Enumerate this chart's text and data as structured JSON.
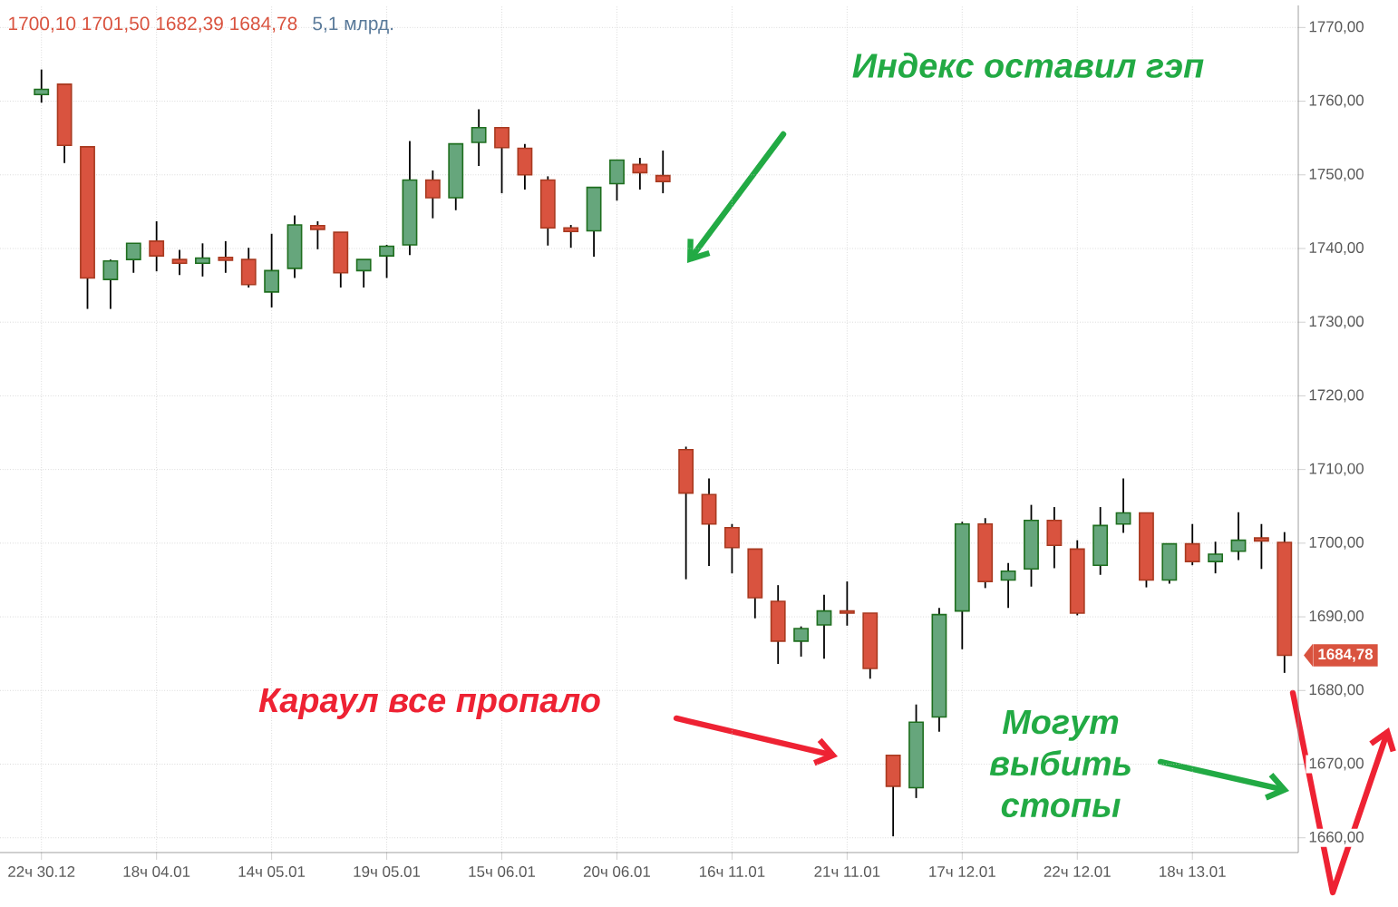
{
  "chart_data": {
    "type": "candlestick",
    "title": "1700,10  1701,50  1682,39  1684,78",
    "subtitle": "5,1 млрд.",
    "categories": [
      "22ч 30.12",
      null,
      null,
      null,
      null,
      "18ч 04.01",
      null,
      null,
      null,
      null,
      "14ч 05.01",
      null,
      null,
      null,
      null,
      "19ч 05.01",
      null,
      null,
      null,
      null,
      "15ч 06.01",
      null,
      null,
      null,
      null,
      "20ч 06.01",
      null,
      null,
      null,
      null,
      "16ч 11.01",
      null,
      null,
      null,
      null,
      "21ч 11.01",
      null,
      null,
      null,
      null,
      "17ч 12.01",
      null,
      null,
      null,
      null,
      "22ч 12.01",
      null,
      null,
      null,
      null,
      "18ч 13.01",
      null,
      null,
      null,
      null
    ],
    "ohlc": [
      [
        1760.9,
        1764.3,
        1759.8,
        1761.6
      ],
      [
        1762.3,
        1762.3,
        1751.6,
        1754.0
      ],
      [
        1753.8,
        1753.8,
        1731.8,
        1736.0
      ],
      [
        1735.8,
        1738.5,
        1731.8,
        1738.3
      ],
      [
        1738.5,
        1740.7,
        1736.7,
        1740.7
      ],
      [
        1741.0,
        1743.7,
        1736.9,
        1739.0
      ],
      [
        1738.5,
        1739.8,
        1736.4,
        1738.0
      ],
      [
        1738.0,
        1740.7,
        1736.2,
        1738.7
      ],
      [
        1738.8,
        1741.0,
        1736.7,
        1738.4
      ],
      [
        1738.5,
        1740.1,
        1734.7,
        1735.1
      ],
      [
        1734.1,
        1742.0,
        1732.0,
        1737.0
      ],
      [
        1737.3,
        1744.5,
        1736.0,
        1743.2
      ],
      [
        1743.1,
        1743.7,
        1739.9,
        1742.6
      ],
      [
        1742.2,
        1742.2,
        1734.7,
        1736.7
      ],
      [
        1737.0,
        1738.5,
        1734.7,
        1738.5
      ],
      [
        1739.0,
        1740.5,
        1736.0,
        1740.3
      ],
      [
        1740.5,
        1754.6,
        1739.1,
        1749.3
      ],
      [
        1749.3,
        1750.6,
        1744.1,
        1746.9
      ],
      [
        1746.9,
        1754.2,
        1745.2,
        1754.2
      ],
      [
        1754.4,
        1758.9,
        1751.2,
        1756.4
      ],
      [
        1756.4,
        1756.4,
        1747.5,
        1753.7
      ],
      [
        1753.6,
        1754.2,
        1748.0,
        1750.0
      ],
      [
        1749.3,
        1749.8,
        1740.4,
        1742.8
      ],
      [
        1742.8,
        1743.2,
        1740.1,
        1742.3
      ],
      [
        1742.4,
        1748.3,
        1738.9,
        1748.3
      ],
      [
        1748.8,
        1752.0,
        1746.5,
        1752.0
      ],
      [
        1751.4,
        1752.3,
        1748.0,
        1750.3
      ],
      [
        1749.9,
        1753.3,
        1747.5,
        1749.1
      ],
      [
        1712.7,
        1713.1,
        1695.1,
        1706.8
      ],
      [
        1706.6,
        1708.8,
        1696.9,
        1702.6
      ],
      [
        1702.1,
        1702.6,
        1695.9,
        1699.4
      ],
      [
        1699.2,
        1699.2,
        1689.8,
        1692.6
      ],
      [
        1692.1,
        1694.3,
        1683.6,
        1686.7
      ],
      [
        1686.7,
        1688.7,
        1684.6,
        1688.4
      ],
      [
        1688.9,
        1693.0,
        1684.3,
        1690.8
      ],
      [
        1690.8,
        1694.8,
        1688.8,
        1690.5
      ],
      [
        1690.5,
        1690.5,
        1681.6,
        1683.0
      ],
      [
        1671.2,
        1671.2,
        1660.2,
        1667.0
      ],
      [
        1666.8,
        1678.1,
        1665.4,
        1675.7
      ],
      [
        1676.4,
        1691.2,
        1674.4,
        1690.3
      ],
      [
        1690.8,
        1702.9,
        1685.6,
        1702.6
      ],
      [
        1702.6,
        1703.4,
        1693.9,
        1694.8
      ],
      [
        1695.0,
        1697.3,
        1691.2,
        1696.2
      ],
      [
        1696.5,
        1705.2,
        1694.1,
        1703.1
      ],
      [
        1703.1,
        1704.9,
        1696.6,
        1699.7
      ],
      [
        1699.2,
        1700.4,
        1690.2,
        1690.5
      ],
      [
        1697.0,
        1704.9,
        1695.7,
        1702.4
      ],
      [
        1702.6,
        1708.8,
        1701.4,
        1704.1
      ],
      [
        1704.1,
        1704.1,
        1694.0,
        1695.0
      ],
      [
        1695.0,
        1699.9,
        1694.5,
        1699.9
      ],
      [
        1699.9,
        1702.6,
        1697.0,
        1697.5
      ],
      [
        1697.5,
        1700.2,
        1695.9,
        1698.5
      ],
      [
        1698.9,
        1704.2,
        1697.7,
        1700.4
      ],
      [
        1700.7,
        1702.6,
        1696.5,
        1700.3
      ],
      [
        1700.1,
        1701.5,
        1682.39,
        1684.78
      ]
    ],
    "ylim": [
      1658,
      1773
    ],
    "yticks": [
      {
        "value": 1660,
        "label": "1660,00"
      },
      {
        "value": 1670,
        "label": "1670,00"
      },
      {
        "value": 1680,
        "label": "1680,00"
      },
      {
        "value": 1690,
        "label": "1690,00"
      },
      {
        "value": 1700,
        "label": "1700,00"
      },
      {
        "value": 1710,
        "label": "1710,00"
      },
      {
        "value": 1720,
        "label": "1720,00"
      },
      {
        "value": 1730,
        "label": "1730,00"
      },
      {
        "value": 1740,
        "label": "1740,00"
      },
      {
        "value": 1750,
        "label": "1750,00"
      },
      {
        "value": 1760,
        "label": "1760,00"
      },
      {
        "value": 1770,
        "label": "1770,00"
      }
    ],
    "grid": true,
    "annotations": [
      "Индекс оставил гэп",
      "Караул все пропало",
      "Могут выбить стопы",
      "1684,78"
    ]
  }
}
